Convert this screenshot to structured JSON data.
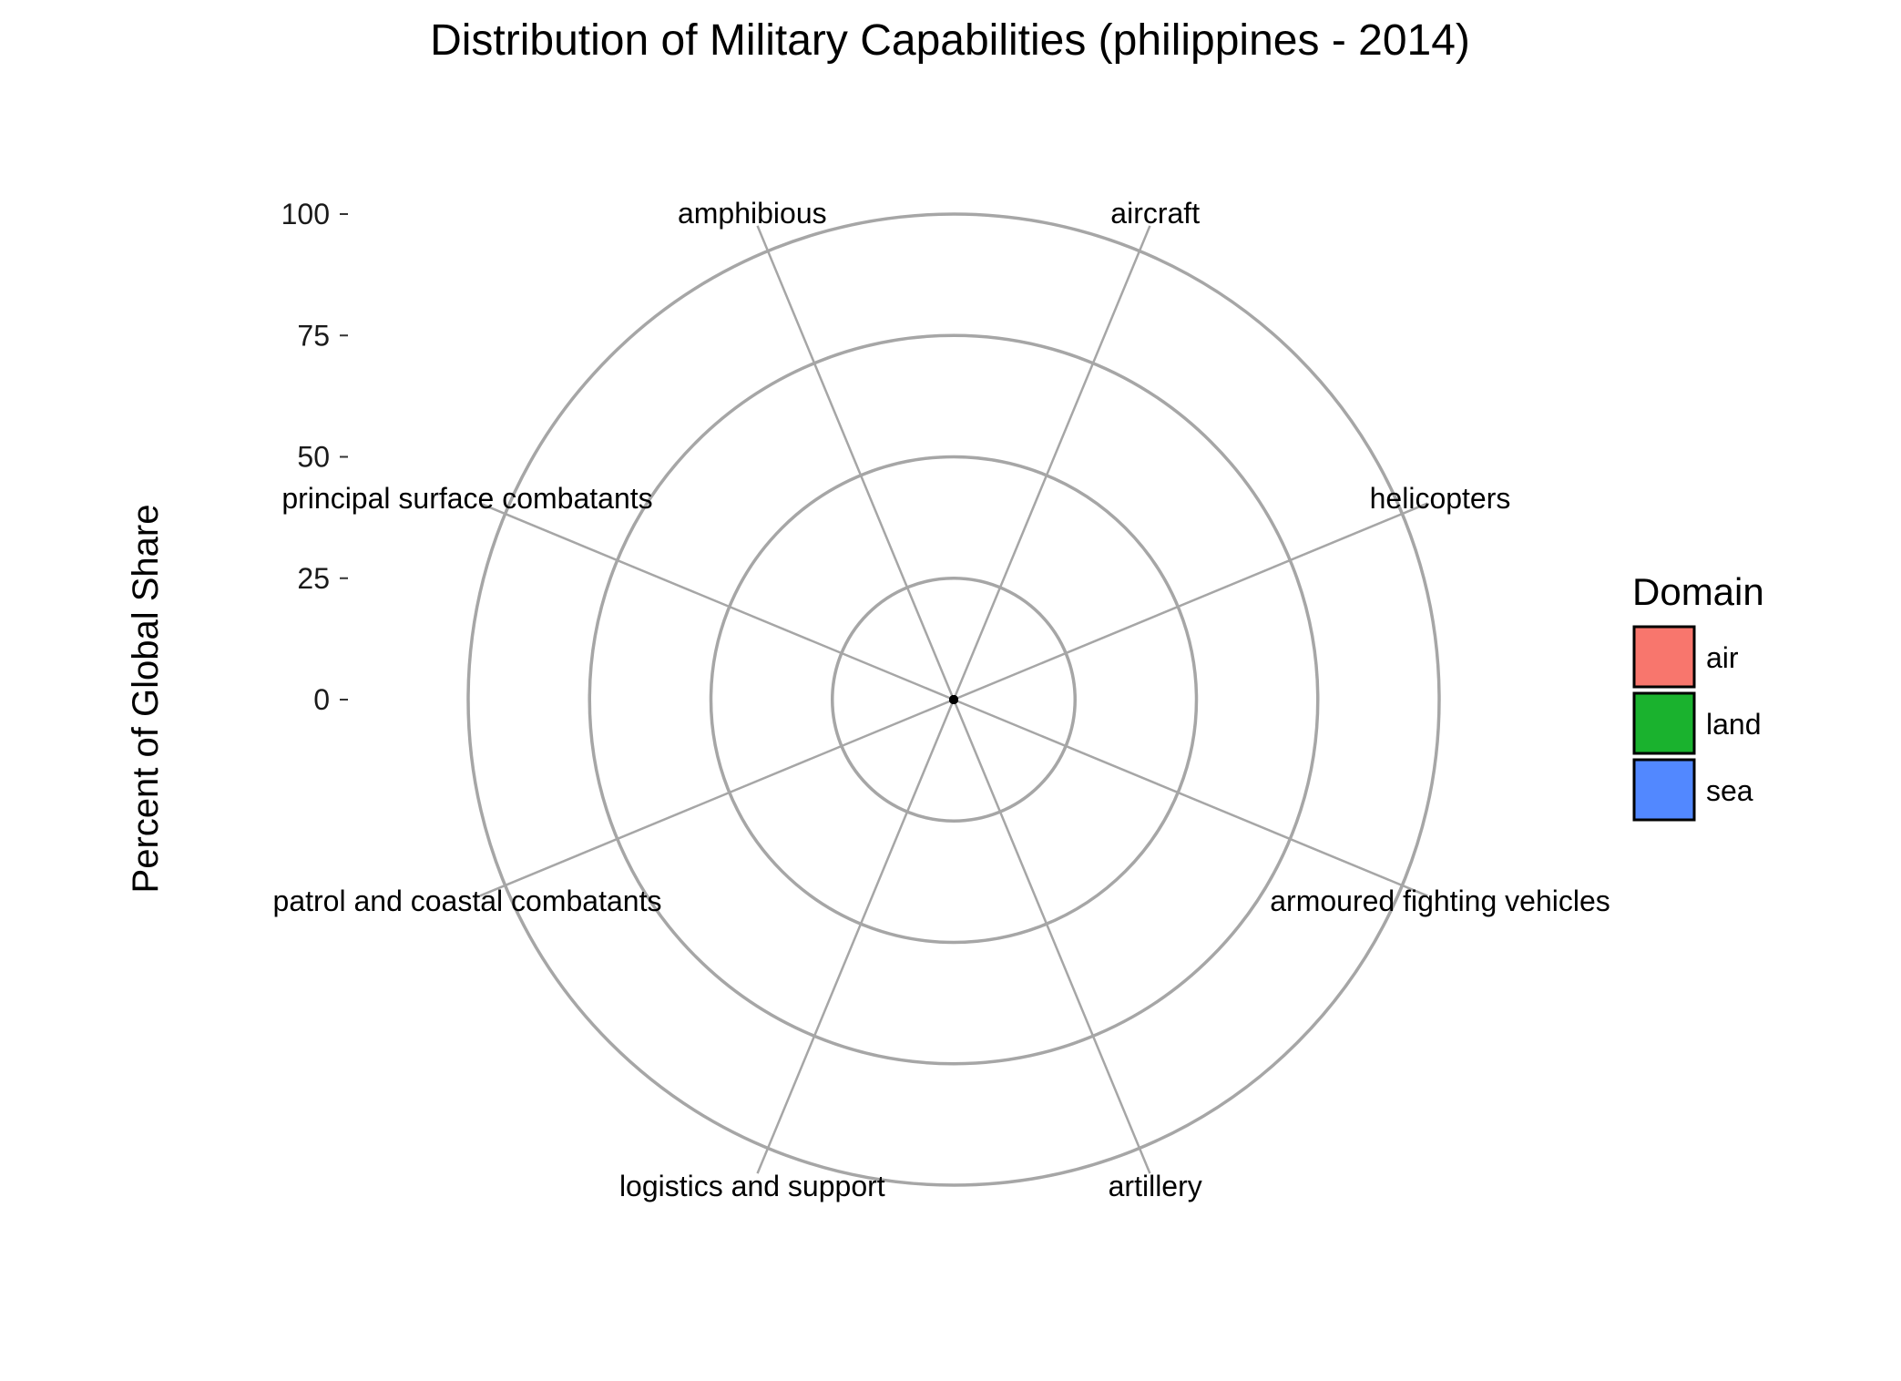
{
  "chart_data": {
    "type": "radar",
    "title": "Distribution of Military Capabilities (philippines - 2014)",
    "ylabel": "Percent of Global Share",
    "ylim": [
      0,
      100
    ],
    "y_ticks": [
      "0",
      "25",
      "50",
      "75",
      "100"
    ],
    "grid": true,
    "categories": [
      "aircraft",
      "helicopters",
      "armoured fighting vehicles",
      "artillery",
      "logistics and support",
      "patrol and coastal combatants",
      "principal surface combatants",
      "amphibious"
    ],
    "values": [
      0,
      0,
      0,
      0,
      0,
      0,
      0,
      0
    ],
    "legend": {
      "title": "Domain",
      "position": "right",
      "items": [
        {
          "label": "air",
          "color": "#F8766D"
        },
        {
          "label": "land",
          "color": "#1AB22E"
        },
        {
          "label": "sea",
          "color": "#5288FF"
        }
      ]
    },
    "colors": {
      "grid": "#a6a6a6",
      "point": "#000000"
    }
  }
}
